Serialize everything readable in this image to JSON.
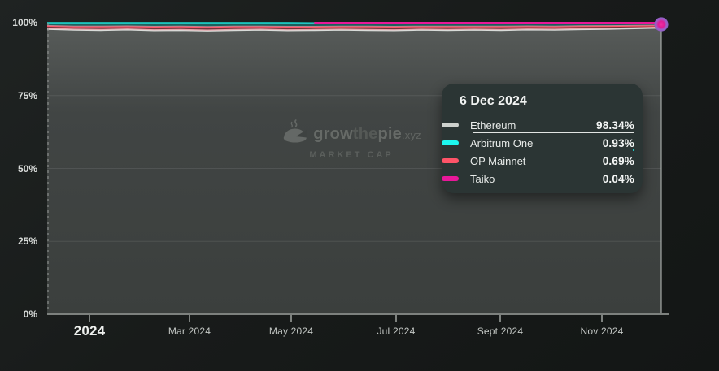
{
  "watermark": {
    "brand_grow": "grow",
    "brand_the": "the",
    "brand_pie": "pie",
    "brand_tld": ".xyz",
    "label": "MARKET CAP"
  },
  "tooltip": {
    "date": "6 Dec 2024",
    "rows": [
      {
        "name": "Ethereum",
        "value": "98.34%",
        "pct": 98.34,
        "color": "#CDD1CD",
        "bar_color": "#E2E5E3"
      },
      {
        "name": "Arbitrum One",
        "value": "0.93%",
        "pct": 0.93,
        "color": "#1DF7EF",
        "bar_color": "#1DF7EF"
      },
      {
        "name": "OP Mainnet",
        "value": "0.69%",
        "pct": 0.69,
        "color": "#FE5468",
        "bar_color": "#FE5468"
      },
      {
        "name": "Taiko",
        "value": "0.04%",
        "pct": 0.04,
        "color": "#E81899",
        "bar_color": "#E81899"
      }
    ]
  },
  "chart_data": {
    "type": "area",
    "stacked": true,
    "title": "MARKET CAP",
    "unit": "%",
    "ylim": [
      0,
      100
    ],
    "grid": "horizontal",
    "legend_position": "tooltip",
    "y_ticks": [
      {
        "label": "100%",
        "value": 100
      },
      {
        "label": "75%",
        "value": 75
      },
      {
        "label": "50%",
        "value": 50
      },
      {
        "label": "25%",
        "value": 25
      },
      {
        "label": "0%",
        "value": 0
      }
    ],
    "x_ticks": [
      {
        "label": "2024",
        "pos": 0.0689,
        "emphasis": true
      },
      {
        "label": "Mar 2024",
        "pos": 0.2318
      },
      {
        "label": "May 2024",
        "pos": 0.3974
      },
      {
        "label": "Jul 2024",
        "pos": 0.5682
      },
      {
        "label": "Sept 2024",
        "pos": 0.7377
      },
      {
        "label": "Nov 2024",
        "pos": 0.9033
      }
    ],
    "x_end_label": "6 Dec 2024",
    "stack_order": [
      "Ethereum",
      "OP Mainnet",
      "Arbitrum One",
      "Taiko"
    ],
    "series": [
      {
        "name": "Ethereum",
        "color": "#D8DBD8",
        "area": "gradient",
        "stroke_width": 2.4,
        "values": [
          97.9,
          97.6,
          97.5,
          97.7,
          97.4,
          97.5,
          97.3,
          97.5,
          97.6,
          97.4,
          97.5,
          97.6,
          97.5,
          97.4,
          97.6,
          97.5,
          97.6,
          97.5,
          97.7,
          97.6,
          97.8,
          97.9,
          98.1,
          98.34
        ]
      },
      {
        "name": "Arbitrum One",
        "color": "#1DF7EF",
        "area_opacity": 0.3,
        "stroke_width": 1.7,
        "stroke_opacity": 0.75,
        "values": [
          1.1,
          1.3,
          1.35,
          1.25,
          1.4,
          1.35,
          1.45,
          1.35,
          1.3,
          1.4,
          1.35,
          1.3,
          1.3,
          1.35,
          1.25,
          1.3,
          1.25,
          1.3,
          1.2,
          1.25,
          1.15,
          1.1,
          1.0,
          0.93
        ]
      },
      {
        "name": "OP Mainnet",
        "color": "#FE5468",
        "area_opacity": 0.4,
        "stroke_width": 2,
        "values": [
          1.0,
          1.1,
          1.15,
          1.05,
          1.2,
          1.15,
          1.25,
          1.15,
          1.1,
          1.2,
          1.1,
          1.05,
          1.15,
          1.2,
          1.1,
          1.15,
          1.1,
          1.15,
          1.05,
          1.1,
          1.0,
          0.95,
          0.85,
          0.69
        ]
      },
      {
        "name": "Taiko",
        "color": "#E81899",
        "area_opacity": 0.5,
        "stroke_width": 2,
        "trim_leading_zeros": true,
        "values": [
          0,
          0,
          0,
          0,
          0,
          0,
          0,
          0,
          0,
          0,
          0.05,
          0.05,
          0.05,
          0.05,
          0.05,
          0.05,
          0.05,
          0.05,
          0.05,
          0.05,
          0.05,
          0.05,
          0.05,
          0.04
        ]
      }
    ]
  }
}
